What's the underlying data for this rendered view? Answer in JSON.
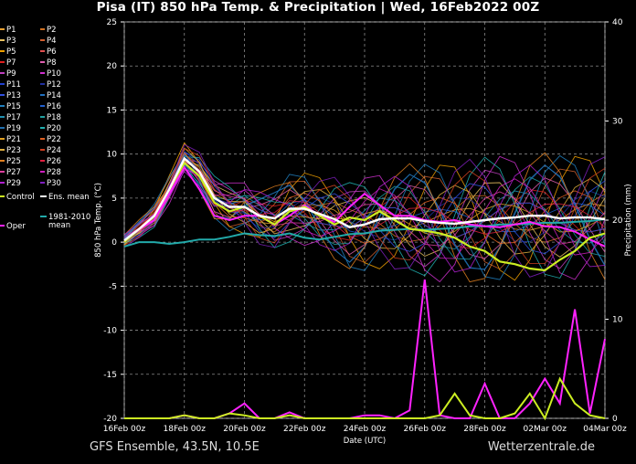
{
  "title": "Pisa  (IT)  850 hPa Temp. & Precipitation | Wed, 16Feb2022 00Z",
  "footer_left": "GFS Ensemble, 43.5N, 10.5E",
  "footer_right": "Wetterzentrale.de",
  "colors": {
    "background": "#000000",
    "grid": "#8a8a8a",
    "control": "#ccee22",
    "ens_mean": "#ffffff",
    "climate_mean": "#22aaaa",
    "oper": "#ff22ff"
  },
  "legend": {
    "members": [
      "P1",
      "P2",
      "P3",
      "P4",
      "P5",
      "P6",
      "P7",
      "P8",
      "P9",
      "P10",
      "P11",
      "P12",
      "P13",
      "P14",
      "P15",
      "P16",
      "P17",
      "P18",
      "P19",
      "P20",
      "P21",
      "P22",
      "P23",
      "P24",
      "P25",
      "P26",
      "P27",
      "P28",
      "P29",
      "P30"
    ],
    "member_colors": [
      "#e8a030",
      "#d07020",
      "#e8c060",
      "#d06030",
      "#f0a000",
      "#e05050",
      "#e02020",
      "#e060b0",
      "#c040c0",
      "#d030d0",
      "#2040d0",
      "#2030a0",
      "#3050e0",
      "#2070c0",
      "#2080c0",
      "#2060d0",
      "#2090b0",
      "#20a0a0",
      "#2070b0",
      "#20b0b0",
      "#e0a020",
      "#e06020",
      "#e0b040",
      "#d04020",
      "#e08020",
      "#e02040",
      "#e040a0",
      "#d020c0",
      "#b020d0",
      "#8020c0"
    ],
    "control": "Control",
    "ens_mean": "Ens. mean",
    "climate_mean_line1": "1981-2010",
    "climate_mean_line2": "mean",
    "oper": "Oper"
  },
  "chart_data": {
    "type": "line",
    "x_label": "Date (UTC)",
    "x_ticks": [
      "16Feb 00z",
      "18Feb 00z",
      "20Feb 00z",
      "22Feb 00z",
      "24Feb 00z",
      "26Feb 00z",
      "28Feb 00z",
      "02Mar 00z",
      "04Mar 00z"
    ],
    "x_range_days": [
      0,
      16
    ],
    "y_left_label": "850 hPa Temp. (°C)",
    "y_left_range": [
      -20,
      25
    ],
    "y_left_ticks": [
      "25",
      "20",
      "15",
      "10",
      "5",
      "0",
      "-5",
      "-10",
      "-15",
      "-20"
    ],
    "y_right_label": "Precipitation (mm)",
    "y_right_range": [
      0,
      40
    ],
    "y_right_ticks": [
      "40",
      "30",
      "20",
      "10",
      "0"
    ],
    "grid": true,
    "temperature": {
      "control": [
        0,
        1.5,
        3,
        6,
        9,
        7.5,
        4.5,
        3.5,
        4,
        3,
        2,
        3.5,
        4,
        3,
        2,
        2.8,
        2.5,
        3.5,
        2.5,
        1.5,
        1.3,
        1,
        0.5,
        -0.5,
        -1,
        -2.2,
        -2.5,
        -3,
        -3.2,
        -2,
        -1,
        0.5,
        1
      ],
      "ens_mean": [
        0.2,
        1.5,
        3,
        6,
        9.5,
        8,
        5,
        4,
        4,
        3,
        2.7,
        3.8,
        3.8,
        3.2,
        2.6,
        1.7,
        2,
        2.6,
        2.7,
        2.7,
        2.4,
        2.2,
        2.1,
        2.3,
        2.5,
        2.7,
        2.8,
        3,
        3,
        2.7,
        2.8,
        2.8,
        2.6
      ],
      "oper": [
        0,
        1.5,
        2.5,
        5.5,
        8.5,
        6,
        3,
        2.5,
        3,
        3,
        2,
        3,
        4.2,
        3,
        2.3,
        4,
        5.5,
        4.2,
        3,
        3,
        2.5,
        2.3,
        2.5,
        2,
        1.8,
        1.7,
        2,
        2.3,
        1.8,
        1.7,
        1.2,
        0.3,
        -0.5
      ],
      "climate_mean": [
        -0.5,
        0,
        0,
        -0.2,
        0,
        0.3,
        0.3,
        0.6,
        1,
        0.8,
        0.7,
        1,
        0.5,
        0.3,
        0.6,
        0.9,
        1,
        1.3,
        1.4,
        1.5,
        1.4,
        1.5,
        1.6,
        1.8,
        1.8,
        2,
        2,
        2.1,
        2.2,
        2.2,
        2.3,
        2.4,
        2.6
      ]
    },
    "precipitation": {
      "control": [
        0,
        0,
        0,
        0,
        0.3,
        0,
        0,
        0.5,
        0.3,
        0,
        0,
        0.3,
        0,
        0,
        0,
        0,
        0,
        0,
        0,
        0,
        0,
        0.3,
        2.5,
        0.3,
        0,
        0,
        0.5,
        2.5,
        0,
        4,
        1.5,
        0.3,
        0
      ],
      "oper": [
        0,
        0,
        0,
        0,
        0.3,
        0,
        0,
        0.5,
        1.5,
        0,
        0,
        0.6,
        0,
        0,
        0,
        0,
        0.3,
        0.3,
        0,
        0.8,
        14,
        0.3,
        0,
        0,
        3.5,
        0,
        0,
        1.5,
        4,
        1.5,
        11,
        0.5,
        8
      ]
    }
  }
}
